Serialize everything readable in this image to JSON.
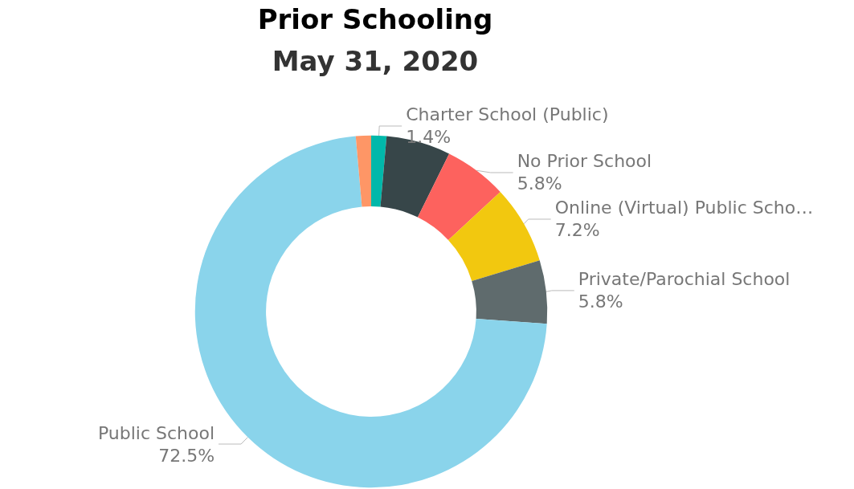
{
  "chart_data": {
    "type": "donut",
    "title": "Prior Schooling",
    "subtitle": "May 31, 2020",
    "categories": [
      "Charter School (Public)",
      null,
      "No Prior School",
      "Online (Virtual) Public Scho…",
      "Private/Parochial School",
      "Public School",
      null
    ],
    "values": [
      1.4,
      5.9,
      5.8,
      7.2,
      5.8,
      72.5,
      1.4
    ],
    "value_labels": [
      "1.4%",
      null,
      "5.8%",
      "7.2%",
      "5.8%",
      "72.5%",
      null
    ],
    "colors": [
      "#01b8aa",
      "#374649",
      "#fd625e",
      "#f2c80f",
      "#5f6b6d",
      "#8ad4eb",
      "#fe9666"
    ],
    "legend": false
  }
}
